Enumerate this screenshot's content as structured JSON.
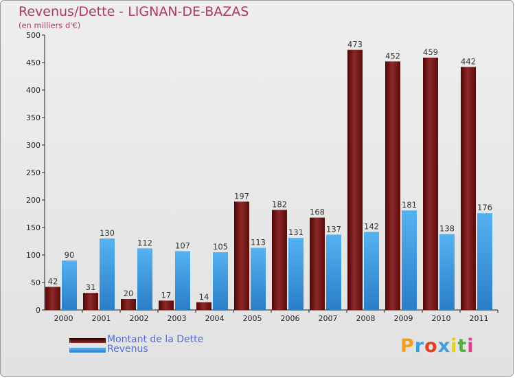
{
  "title": "Revenus/Dette - LIGNAN-DE-BAZAS",
  "subtitle": "(en milliers d'€)",
  "chart_data": {
    "type": "bar",
    "categories": [
      "2000",
      "2001",
      "2002",
      "2003",
      "2004",
      "2005",
      "2006",
      "2007",
      "2008",
      "2009",
      "2010",
      "2011"
    ],
    "series": [
      {
        "name": "Montant de la Dette",
        "color": "#7a1414",
        "values": [
          42,
          31,
          20,
          17,
          14,
          197,
          182,
          168,
          473,
          452,
          459,
          442
        ]
      },
      {
        "name": "Revenus",
        "color": "#3d9be0",
        "values": [
          90,
          130,
          112,
          107,
          105,
          113,
          131,
          137,
          142,
          181,
          138,
          176
        ]
      }
    ],
    "ylim": [
      0,
      500
    ],
    "yticks": [
      0,
      50,
      100,
      150,
      200,
      250,
      300,
      350,
      400,
      450,
      500
    ],
    "grid": false,
    "legend_placement": "bottom-left"
  },
  "legend": [
    {
      "label": "Montant de la Dette",
      "color": "#7a1414"
    },
    {
      "label": "Revenus",
      "color": "#3d9be0"
    }
  ],
  "logo": {
    "text": "Proxiti",
    "letters": [
      "P",
      "r",
      "o",
      "x",
      "i",
      "t",
      "i"
    ],
    "letter_colors": [
      "#f0a020",
      "#3aa0e0",
      "#e04020",
      "#3aa0e0",
      "#e0d020",
      "#50b040",
      "#e04090"
    ]
  }
}
